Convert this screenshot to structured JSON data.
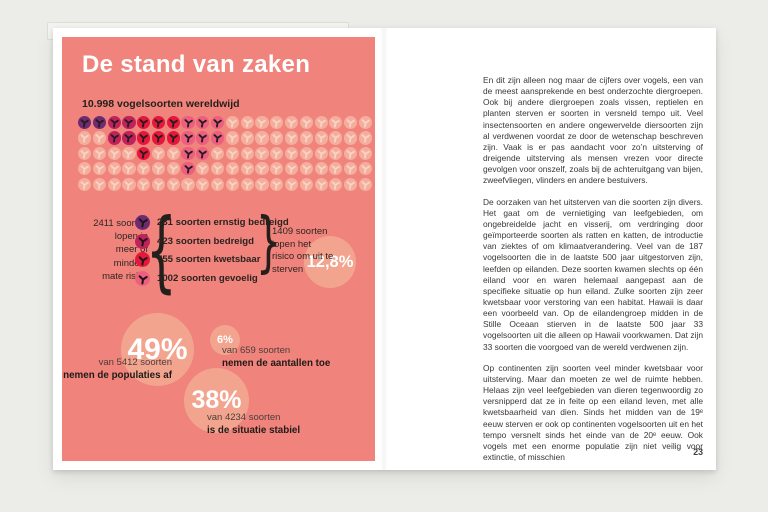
{
  "colors": {
    "canvas_bg": "#ECECE8",
    "paper": "#FFFFFF",
    "block": "#F0837B",
    "pale_icon": "#F5AD9C",
    "pale_glyph": "#F8D3C6",
    "stat_circle": "#F3A48F",
    "glyph_ink": "#241C1E",
    "body_text": "#3B3836",
    "critical": "#6F2B71",
    "endangered": "#C0235B",
    "vulnerable": "#E5173A",
    "sensitive": "#EC5F7F"
  },
  "infographic": {
    "title": "De stand van zaken",
    "subtitle": "10.998 vogelsoorten wereldwijd",
    "icon_grid": {
      "rows": [
        "PPCCRRRKKKLLLLLLLLLL",
        "LLCCRRRKKKLLLLLLLLLL",
        "LLLLRLLKKLLLLLLLLLLL",
        "LLLLLLLKLLLLLLLLLLLL",
        "LLLLLLLLLLLLLLLLLLLL"
      ],
      "legend_colors": {
        "P": "#6F2B71",
        "C": "#C0235B",
        "R": "#E5173A",
        "K": "#EC5F7F",
        "L": "#F5AD9C"
      }
    },
    "risk_group": {
      "left_label": "2411 soorten\nlopen in\nmeer of\nmindere\nmate risico",
      "brace_open": "{",
      "brace_close": "}",
      "items": [
        {
          "color_key": "P",
          "label": "231 soorten ernstig bedreigd"
        },
        {
          "color_key": "C",
          "label": "423 soorten bedreigd"
        },
        {
          "color_key": "R",
          "label": "755 soorten kwetsbaar"
        },
        {
          "color_key": "K",
          "label": "1002 soorten gevoelig"
        }
      ],
      "right_label": "1409 soorten\nlopen het\nrisico om uit te\nsterven",
      "extinction_pct": "12,8%"
    },
    "stat_circles": [
      {
        "pct": "49%",
        "line1": "van 5412 soorten",
        "line2": "nemen de populaties af"
      },
      {
        "pct": "6%",
        "line1": "van 659 soorten",
        "line2": "nemen de aantallen toe"
      },
      {
        "pct": "38%",
        "line1": "van 4234 soorten",
        "line2": "is de situatie stabiel"
      }
    ]
  },
  "article": {
    "paragraphs": [
      "En dit zijn alleen nog maar de cijfers over vogels, een van de meest aansprekende en best onderzochte diergroepen. Ook bij andere diergroepen zoals vissen, reptielen en planten sterven er soorten in versneld tempo uit. Veel insectensoorten en andere ongewervelde diersoorten zijn al verdwenen voordat ze door de wetenschap beschreven zijn. Vaak is er pas aandacht voor zo’n uitsterving of dreigende uitsterving als mensen vrezen voor directe gevolgen voor onszelf, zoals bij de achteruitgang van bijen, zweefvliegen, vlinders en andere bestuivers.",
      "De oorzaken van het uitsterven van die soorten zijn divers. Het gaat om de vernietiging van leefgebieden, om ongebreidelde jacht en visserij, om verdringing door geïmporteerde soorten als ratten en katten, de introductie van ziektes of om klimaatverandering. Veel van de 187 vogelsoorten die in de laatste 500 jaar uitgestorven zijn, leefden op eilanden. Deze soorten kwamen slechts op één eiland voor en waren helemaal aangepast aan de specifieke situatie op hun eiland. Zulke soorten zijn zeer kwetsbaar voor verstoring van een habitat. Hawaii is daar een voorbeeld van. Op de eilandengroep midden in de Stille Oceaan stierven in de laatste 500 jaar 33 vogelsoorten uit die alleen op Hawaii voorkwamen. Dat zijn 33 soorten die voorgoed van de wereld verdwenen zijn.",
      "Op continenten zijn soorten veel minder kwetsbaar voor uitsterving. Maar dan moeten ze wel de ruimte hebben. Helaas zijn veel leefgebieden van dieren tegenwoordig zo versnipperd dat ze in feite op een eiland leven, met alle kwetsbaarheid van dien. Sinds het midden van de 19ᵉ eeuw sterven er ook op continenten vogelsoorten uit en het tempo versnelt sinds het einde van de 20ᵉ eeuw. Ook vogels met een enorme populatie zijn niet veilig voor extinctie, of misschien"
    ],
    "page_number": "23"
  },
  "chart_data": {
    "type": "pictogram",
    "title": "10.998 vogelsoorten wereldwijd",
    "unit_per_icon": 100,
    "categories": [
      "ernstig bedreigd",
      "bedreigd",
      "kwetsbaar",
      "gevoelig"
    ],
    "values": [
      231,
      423,
      755,
      1002
    ],
    "totals": {
      "species_worldwide": 10998,
      "at_risk_species": 2411,
      "extinction_risk_species": 1409,
      "extinction_risk_pct": "12,8%",
      "declining_pct": "49%",
      "declining_of_species": 5412,
      "increasing_pct": "6%",
      "increasing_of_species": 659,
      "stable_pct": "38%",
      "stable_of_species": 4234
    }
  }
}
